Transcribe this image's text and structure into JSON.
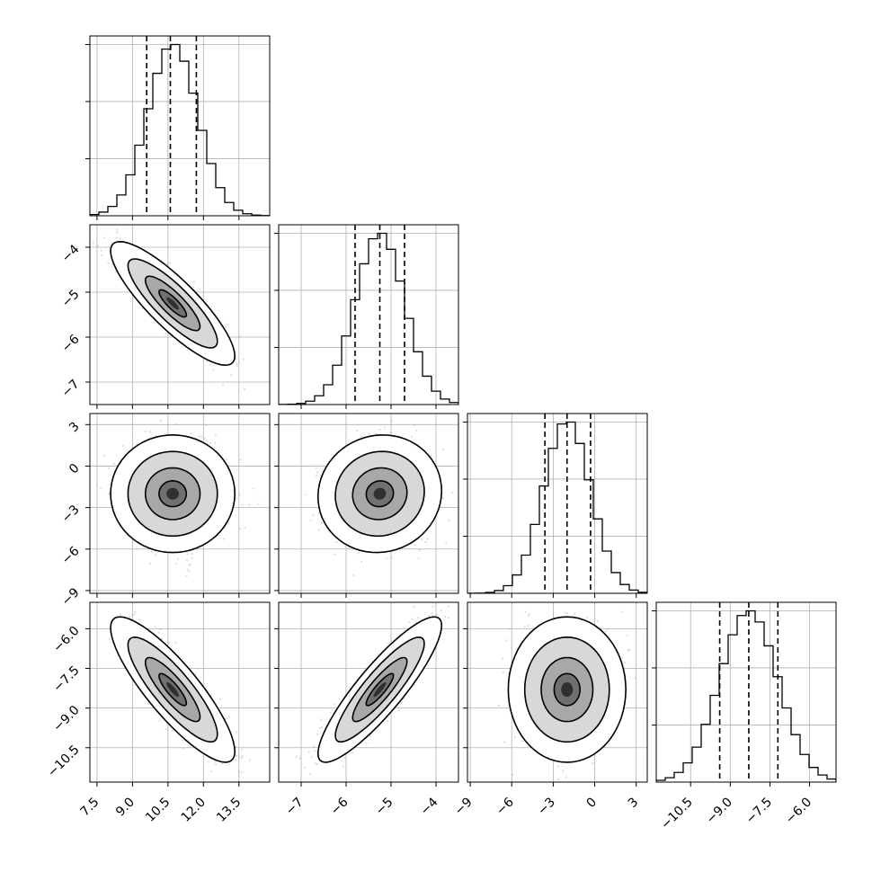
{
  "chart_data": {
    "type": "scatter",
    "plot_kind": "corner",
    "grid": true,
    "parameters": [
      {
        "ticks": [
          7.5,
          9.0,
          10.5,
          12.0,
          13.5
        ],
        "tick_labels": [
          "7.5",
          "9.0",
          "10.5",
          "12.0",
          "13.5"
        ],
        "range": [
          7.2,
          14.8
        ],
        "mean": 10.7,
        "sd": 1.05,
        "quantiles": [
          9.6,
          10.6,
          11.7
        ]
      },
      {
        "ticks": [
          -7,
          -6,
          -5,
          -4
        ],
        "tick_labels": [
          "−7",
          "−6",
          "−5",
          "−4"
        ],
        "range": [
          -7.5,
          -3.5
        ],
        "mean": -5.25,
        "sd": 0.55,
        "quantiles": [
          -5.8,
          -5.25,
          -4.7
        ]
      },
      {
        "ticks": [
          -9,
          -6,
          -3,
          0,
          3
        ],
        "tick_labels": [
          "−9",
          "−6",
          "−3",
          "0",
          "3"
        ],
        "range": [
          -9.2,
          3.8
        ],
        "mean": -2.0,
        "sd": 1.7,
        "quantiles": [
          -3.6,
          -2.0,
          -0.3
        ]
      },
      {
        "ticks": [
          -10.5,
          -9.0,
          -7.5,
          -6.0
        ],
        "tick_labels": [
          "−10.5",
          "−9.0",
          "−7.5",
          "−6.0"
        ],
        "range": [
          -11.8,
          -5.0
        ],
        "mean": -8.3,
        "sd": 1.1,
        "quantiles": [
          -9.4,
          -8.3,
          -7.2
        ]
      }
    ],
    "correlations": [
      {
        "pair": [
          0,
          1
        ],
        "r": -0.85
      },
      {
        "pair": [
          0,
          2
        ],
        "r": 0.0
      },
      {
        "pair": [
          0,
          3
        ],
        "r": -0.85
      },
      {
        "pair": [
          1,
          2
        ],
        "r": 0.05
      },
      {
        "pair": [
          1,
          3
        ],
        "r": 0.88
      },
      {
        "pair": [
          2,
          3
        ],
        "r": 0.0
      }
    ]
  }
}
